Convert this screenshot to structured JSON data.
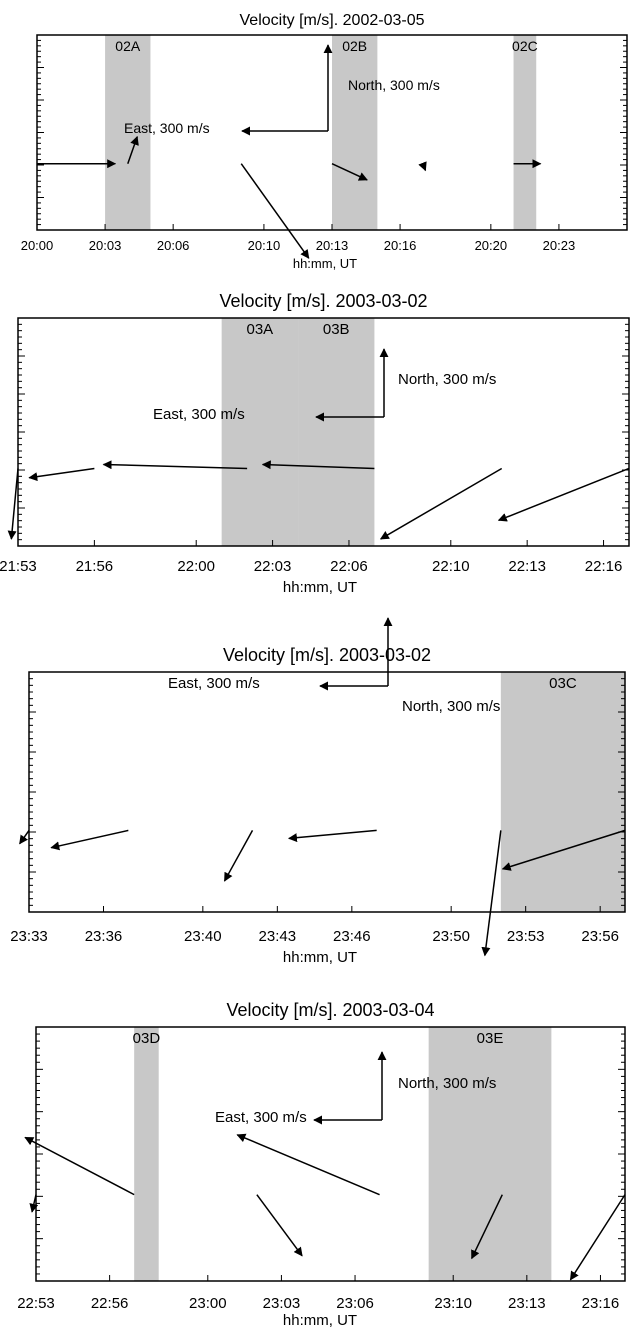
{
  "colors": {
    "shade": "#c8c8c8",
    "line": "#000000",
    "background": "#ffffff"
  },
  "chart_data": [
    {
      "type": "vector-field",
      "title": "Velocity [m/s]. 2002-03-05",
      "xlabel": "hh:mm, UT",
      "ylabel": "",
      "xlim": [
        "20:00",
        "20:26"
      ],
      "x_ticks": [
        "20:00",
        "20:03",
        "20:06",
        "20:10",
        "20:13",
        "20:16",
        "20:20",
        "20:23"
      ],
      "grid": false,
      "shaded_intervals": [
        {
          "label": "02A",
          "start": "20:03",
          "end": "20:05"
        },
        {
          "label": "02B",
          "start": "20:13",
          "end": "20:15"
        },
        {
          "label": "02C",
          "start": "20:21",
          "end": "20:22"
        }
      ],
      "scale_labels": {
        "east": "East, 300 m/s",
        "north": "North, 300 m/s"
      },
      "vectors": [
        {
          "time": "20:00",
          "east": 290,
          "north": 0
        },
        {
          "time": "20:04",
          "east": 35,
          "north": 100
        },
        {
          "time": "20:09",
          "east": 250,
          "north": -350
        },
        {
          "time": "20:13",
          "east": 130,
          "north": -60
        },
        {
          "time": "20:17",
          "east": 10,
          "north": -25
        },
        {
          "time": "20:21",
          "east": 100,
          "north": 0
        }
      ]
    },
    {
      "type": "vector-field",
      "title": "Velocity [m/s]. 2003-03-02",
      "xlabel": "hh:mm, UT",
      "ylabel": "",
      "xlim": [
        "21:53",
        "22:17"
      ],
      "x_ticks": [
        "21:53",
        "21:56",
        "22:00",
        "22:03",
        "22:06",
        "22:10",
        "22:13",
        "22:16"
      ],
      "grid": false,
      "shaded_intervals": [
        {
          "label": "03A",
          "start": "22:01",
          "end": "22:04"
        },
        {
          "label": "03B",
          "start": "22:04",
          "end": "22:07"
        }
      ],
      "scale_labels": {
        "east": "East, 300 m/s",
        "north": "North, 300 m/s"
      },
      "vectors": [
        {
          "time": "21:53",
          "east": -25,
          "north": -265
        },
        {
          "time": "21:56",
          "east": -245,
          "north": -35
        },
        {
          "time": "22:02",
          "east": -540,
          "north": 15
        },
        {
          "time": "22:07",
          "east": -420,
          "north": 15
        },
        {
          "time": "22:12",
          "east": -455,
          "north": -265
        },
        {
          "time": "22:17",
          "east": -490,
          "north": -195
        }
      ]
    },
    {
      "type": "vector-field",
      "title": "Velocity [m/s]. 2003-03-02",
      "xlabel": "hh:mm, UT",
      "ylabel": "",
      "xlim": [
        "23:33",
        "23:57"
      ],
      "x_ticks": [
        "23:33",
        "23:36",
        "23:40",
        "23:43",
        "23:46",
        "23:50",
        "23:53",
        "23:56"
      ],
      "grid": false,
      "shaded_intervals": [
        {
          "label": "03C",
          "start": "23:52",
          "end": "23:57"
        }
      ],
      "scale_labels": {
        "east": "East, 300 m/s",
        "north": "North, 300 m/s"
      },
      "vectors": [
        {
          "time": "23:33",
          "east": -35,
          "north": -50
        },
        {
          "time": "23:37",
          "east": -290,
          "north": -65
        },
        {
          "time": "23:42",
          "east": -105,
          "north": -190
        },
        {
          "time": "23:47",
          "east": -330,
          "north": -30
        },
        {
          "time": "23:52",
          "east": -60,
          "north": -470
        },
        {
          "time": "23:57",
          "east": -460,
          "north": -145
        }
      ]
    },
    {
      "type": "vector-field",
      "title": "Velocity [m/s]. 2003-03-04",
      "xlabel": "hh:mm, UT",
      "ylabel": "",
      "xlim": [
        "22:53",
        "23:17"
      ],
      "x_ticks": [
        "22:53",
        "22:56",
        "23:00",
        "23:03",
        "23:06",
        "23:10",
        "23:13",
        "23:16"
      ],
      "grid": false,
      "shaded_intervals": [
        {
          "label": "03D",
          "start": "22:57",
          "end": "22:58"
        },
        {
          "label": "03E",
          "start": "23:09",
          "end": "23:14"
        }
      ],
      "scale_labels": {
        "east": "East, 300 m/s",
        "north": "North, 300 m/s"
      },
      "vectors": [
        {
          "time": "22:53",
          "east": -15,
          "north": -65
        },
        {
          "time": "22:57",
          "east": -410,
          "north": 215
        },
        {
          "time": "23:02",
          "east": 170,
          "north": -230
        },
        {
          "time": "23:07",
          "east": -535,
          "north": 225
        },
        {
          "time": "23:12",
          "east": -115,
          "north": -240
        },
        {
          "time": "23:17",
          "east": -205,
          "north": -320
        }
      ]
    }
  ]
}
